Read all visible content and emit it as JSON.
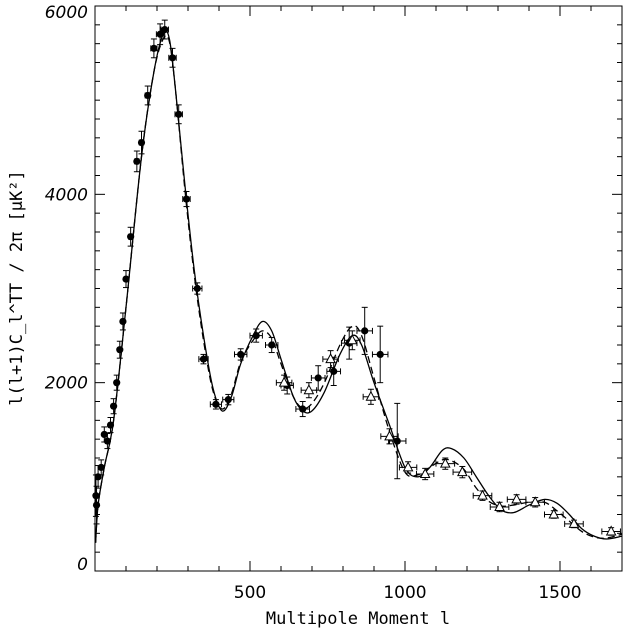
{
  "chart_data": {
    "type": "scatter",
    "xlabel": "Multipole Moment l",
    "ylabel": "l(l+1)C_l^TT / 2π [μK²]",
    "xlim": [
      0,
      1700
    ],
    "ylim": [
      0,
      6000
    ],
    "x_ticks": [
      {
        "value": 500,
        "label": "500"
      },
      {
        "value": 1000,
        "label": "1000"
      },
      {
        "value": 1500,
        "label": "1500"
      }
    ],
    "y_ticks": [
      {
        "value": 0,
        "label": "0"
      },
      {
        "value": 2000,
        "label": "2000"
      },
      {
        "value": 4000,
        "label": "4000"
      },
      {
        "value": 6000,
        "label": "6000"
      }
    ],
    "grid": false,
    "series": [
      {
        "marker": "filled-circle",
        "points": [
          {
            "x": 3,
            "y": 800,
            "xerr": 2,
            "yerr": 220
          },
          {
            "x": 5,
            "y": 700,
            "xerr": 2,
            "yerr": 200
          },
          {
            "x": 10,
            "y": 1000,
            "xerr": 3,
            "yerr": 120
          },
          {
            "x": 20,
            "y": 1100,
            "xerr": 4,
            "yerr": 80
          },
          {
            "x": 30,
            "y": 1450,
            "xerr": 5,
            "yerr": 80
          },
          {
            "x": 40,
            "y": 1380,
            "xerr": 5,
            "yerr": 80
          },
          {
            "x": 50,
            "y": 1550,
            "xerr": 5,
            "yerr": 80
          },
          {
            "x": 60,
            "y": 1750,
            "xerr": 5,
            "yerr": 80
          },
          {
            "x": 70,
            "y": 2000,
            "xerr": 5,
            "yerr": 80
          },
          {
            "x": 80,
            "y": 2350,
            "xerr": 5,
            "yerr": 90
          },
          {
            "x": 90,
            "y": 2650,
            "xerr": 5,
            "yerr": 90
          },
          {
            "x": 100,
            "y": 3100,
            "xerr": 5,
            "yerr": 90
          },
          {
            "x": 115,
            "y": 3550,
            "xerr": 6,
            "yerr": 100
          },
          {
            "x": 135,
            "y": 4350,
            "xerr": 7,
            "yerr": 110
          },
          {
            "x": 150,
            "y": 4550,
            "xerr": 7,
            "yerr": 120
          },
          {
            "x": 170,
            "y": 5050,
            "xerr": 8,
            "yerr": 100
          },
          {
            "x": 190,
            "y": 5550,
            "xerr": 10,
            "yerr": 100
          },
          {
            "x": 210,
            "y": 5700,
            "xerr": 12,
            "yerr": 110
          },
          {
            "x": 225,
            "y": 5750,
            "xerr": 12,
            "yerr": 100
          },
          {
            "x": 250,
            "y": 5450,
            "xerr": 12,
            "yerr": 100
          },
          {
            "x": 270,
            "y": 4850,
            "xerr": 12,
            "yerr": 100
          },
          {
            "x": 295,
            "y": 3950,
            "xerr": 12,
            "yerr": 80
          },
          {
            "x": 330,
            "y": 3000,
            "xerr": 15,
            "yerr": 60
          },
          {
            "x": 350,
            "y": 2250,
            "xerr": 15,
            "yerr": 50
          },
          {
            "x": 390,
            "y": 1770,
            "xerr": 18,
            "yerr": 50
          },
          {
            "x": 430,
            "y": 1820,
            "xerr": 18,
            "yerr": 55
          },
          {
            "x": 470,
            "y": 2300,
            "xerr": 20,
            "yerr": 60
          },
          {
            "x": 520,
            "y": 2500,
            "xerr": 20,
            "yerr": 70
          },
          {
            "x": 570,
            "y": 2400,
            "xerr": 20,
            "yerr": 80
          },
          {
            "x": 620,
            "y": 1970,
            "xerr": 20,
            "yerr": 90
          },
          {
            "x": 670,
            "y": 1720,
            "xerr": 22,
            "yerr": 80
          },
          {
            "x": 720,
            "y": 2050,
            "xerr": 22,
            "yerr": 130
          },
          {
            "x": 770,
            "y": 2120,
            "xerr": 22,
            "yerr": 150
          },
          {
            "x": 820,
            "y": 2420,
            "xerr": 25,
            "yerr": 170
          },
          {
            "x": 870,
            "y": 2550,
            "xerr": 25,
            "yerr": 250
          },
          {
            "x": 920,
            "y": 2300,
            "xerr": 25,
            "yerr": 300
          },
          {
            "x": 975,
            "y": 1380,
            "xerr": 28,
            "yerr": 400
          }
        ]
      },
      {
        "marker": "open-triangle",
        "points": [
          {
            "x": 610,
            "y": 2000,
            "xerr": 25,
            "yerr": 80
          },
          {
            "x": 690,
            "y": 1920,
            "xerr": 25,
            "yerr": 80
          },
          {
            "x": 760,
            "y": 2250,
            "xerr": 25,
            "yerr": 90
          },
          {
            "x": 830,
            "y": 2450,
            "xerr": 25,
            "yerr": 100
          },
          {
            "x": 890,
            "y": 1850,
            "xerr": 25,
            "yerr": 80
          },
          {
            "x": 950,
            "y": 1430,
            "xerr": 28,
            "yerr": 80
          },
          {
            "x": 1010,
            "y": 1100,
            "xerr": 28,
            "yerr": 60
          },
          {
            "x": 1065,
            "y": 1030,
            "xerr": 28,
            "yerr": 60
          },
          {
            "x": 1130,
            "y": 1140,
            "xerr": 30,
            "yerr": 60
          },
          {
            "x": 1185,
            "y": 1050,
            "xerr": 30,
            "yerr": 60
          },
          {
            "x": 1250,
            "y": 800,
            "xerr": 30,
            "yerr": 50
          },
          {
            "x": 1305,
            "y": 680,
            "xerr": 30,
            "yerr": 50
          },
          {
            "x": 1360,
            "y": 760,
            "xerr": 30,
            "yerr": 50
          },
          {
            "x": 1420,
            "y": 730,
            "xerr": 30,
            "yerr": 50
          },
          {
            "x": 1480,
            "y": 600,
            "xerr": 30,
            "yerr": 40
          },
          {
            "x": 1545,
            "y": 500,
            "xerr": 30,
            "yerr": 40
          },
          {
            "x": 1665,
            "y": 420,
            "xerr": 30,
            "yerr": 40
          }
        ]
      }
    ],
    "model_curves": [
      {
        "style": "solid",
        "points": [
          [
            2,
            300
          ],
          [
            10,
            700
          ],
          [
            30,
            1100
          ],
          [
            60,
            1600
          ],
          [
            100,
            2800
          ],
          [
            150,
            4400
          ],
          [
            190,
            5300
          ],
          [
            220,
            5700
          ],
          [
            240,
            5650
          ],
          [
            260,
            5100
          ],
          [
            290,
            4100
          ],
          [
            320,
            3200
          ],
          [
            350,
            2500
          ],
          [
            380,
            1950
          ],
          [
            410,
            1700
          ],
          [
            440,
            1850
          ],
          [
            470,
            2200
          ],
          [
            510,
            2500
          ],
          [
            540,
            2650
          ],
          [
            570,
            2550
          ],
          [
            600,
            2250
          ],
          [
            640,
            1850
          ],
          [
            670,
            1700
          ],
          [
            700,
            1700
          ],
          [
            740,
            1900
          ],
          [
            790,
            2300
          ],
          [
            830,
            2500
          ],
          [
            860,
            2400
          ],
          [
            900,
            2000
          ],
          [
            950,
            1550
          ],
          [
            1000,
            1100
          ],
          [
            1040,
            1000
          ],
          [
            1080,
            1100
          ],
          [
            1120,
            1280
          ],
          [
            1150,
            1300
          ],
          [
            1190,
            1200
          ],
          [
            1230,
            1000
          ],
          [
            1270,
            800
          ],
          [
            1310,
            650
          ],
          [
            1350,
            620
          ],
          [
            1400,
            700
          ],
          [
            1450,
            760
          ],
          [
            1490,
            720
          ],
          [
            1530,
            600
          ],
          [
            1570,
            450
          ],
          [
            1610,
            370
          ],
          [
            1650,
            340
          ],
          [
            1700,
            370
          ]
        ]
      },
      {
        "style": "dashed",
        "points": [
          [
            2,
            300
          ],
          [
            10,
            700
          ],
          [
            30,
            1100
          ],
          [
            60,
            1600
          ],
          [
            100,
            2800
          ],
          [
            150,
            4400
          ],
          [
            190,
            5300
          ],
          [
            220,
            5650
          ],
          [
            240,
            5620
          ],
          [
            260,
            5100
          ],
          [
            290,
            4050
          ],
          [
            320,
            3150
          ],
          [
            350,
            2450
          ],
          [
            380,
            1920
          ],
          [
            410,
            1720
          ],
          [
            440,
            1880
          ],
          [
            470,
            2220
          ],
          [
            510,
            2450
          ],
          [
            540,
            2550
          ],
          [
            570,
            2470
          ],
          [
            600,
            2200
          ],
          [
            640,
            1850
          ],
          [
            670,
            1730
          ],
          [
            700,
            1780
          ],
          [
            740,
            2000
          ],
          [
            790,
            2400
          ],
          [
            830,
            2600
          ],
          [
            860,
            2500
          ],
          [
            900,
            2050
          ],
          [
            950,
            1480
          ],
          [
            1000,
            1050
          ],
          [
            1040,
            1020
          ],
          [
            1080,
            1100
          ],
          [
            1120,
            1180
          ],
          [
            1150,
            1170
          ],
          [
            1190,
            1080
          ],
          [
            1230,
            880
          ],
          [
            1270,
            740
          ],
          [
            1310,
            690
          ],
          [
            1350,
            700
          ],
          [
            1400,
            730
          ],
          [
            1450,
            730
          ],
          [
            1490,
            640
          ],
          [
            1530,
            530
          ],
          [
            1570,
            420
          ],
          [
            1610,
            360
          ],
          [
            1650,
            350
          ],
          [
            1700,
            390
          ]
        ]
      }
    ]
  }
}
